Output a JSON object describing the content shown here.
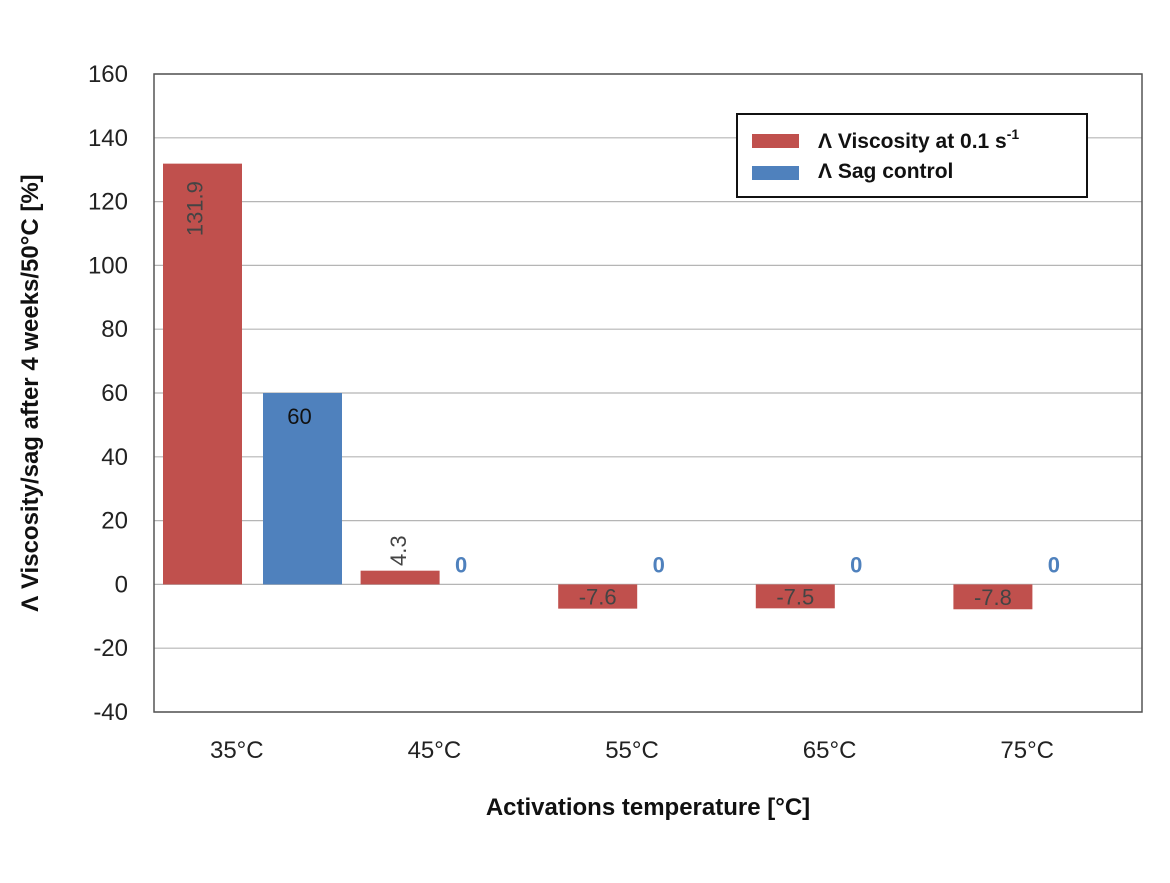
{
  "chart_data": {
    "type": "bar",
    "categories": [
      "35°C",
      "45°C",
      "55°C",
      "65°C",
      "75°C"
    ],
    "series": [
      {
        "name": "Λ Viscosity at 0.1 s",
        "name_superscript": "-1",
        "values": [
          131.9,
          4.3,
          -7.6,
          -7.5,
          -7.8
        ],
        "labels": [
          "131.9",
          "4.3",
          "-7.6",
          "-7.5",
          "-7.8"
        ],
        "color": "#c0504d"
      },
      {
        "name": "Λ Sag control",
        "values": [
          60,
          0,
          0,
          0,
          0
        ],
        "labels": [
          "60",
          "0",
          "0",
          "0",
          "0"
        ],
        "color": "#4f81bd"
      }
    ],
    "xlabel": "Activations temperature [°C]",
    "ylabel": "Λ Viscosity/sag after 4 weeks/50°C [%]",
    "ylim": [
      -40,
      160
    ],
    "yticks": [
      160,
      140,
      120,
      100,
      80,
      60,
      40,
      20,
      0,
      -20,
      -40
    ],
    "grid": true,
    "legend_position": "top-right"
  }
}
